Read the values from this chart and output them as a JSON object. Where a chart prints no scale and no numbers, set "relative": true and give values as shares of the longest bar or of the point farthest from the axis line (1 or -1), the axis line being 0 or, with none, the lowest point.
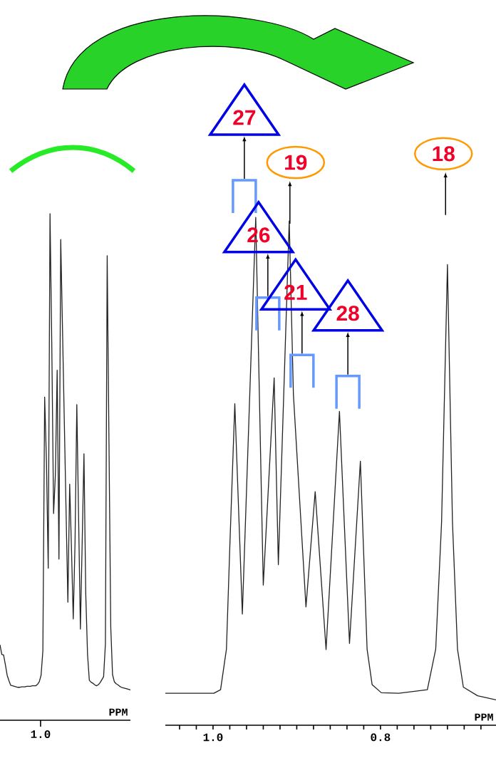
{
  "chart_data": [
    {
      "type": "line",
      "relative": true,
      "xlabel": "PPM",
      "color": "#222222",
      "categories": [
        null,
        null,
        null,
        null,
        null,
        null,
        null,
        null,
        null,
        null,
        null,
        null,
        null,
        null,
        null,
        null,
        null,
        null,
        null,
        null,
        null,
        null,
        null,
        null,
        null,
        null,
        null,
        null,
        null,
        null,
        null,
        null,
        null,
        null,
        null,
        null,
        null,
        null,
        null,
        null,
        null,
        null,
        null,
        null,
        null,
        null,
        null,
        null,
        null,
        null,
        null,
        null,
        null,
        null,
        null,
        null,
        null,
        null,
        null,
        null,
        null,
        null,
        null,
        null,
        null,
        null,
        null,
        null,
        null,
        null,
        null,
        null,
        null,
        null
      ],
      "values": [
        0.149,
        0.13,
        0.129,
        0.11,
        0.089,
        0.078,
        0.069,
        0.068,
        0.067,
        0.066,
        0.065,
        0.065,
        0.066,
        0.066,
        0.066,
        0.067,
        0.067,
        0.067,
        0.068,
        0.068,
        0.068,
        0.071,
        0.076,
        0.089,
        0.137,
        0.638,
        0.512,
        0.3,
        1.0,
        0.737,
        0.408,
        0.484,
        0.691,
        0.318,
        0.949,
        0.77,
        0.59,
        0.41,
        0.233,
        0.466,
        0.34,
        0.2,
        0.35,
        0.623,
        0.4,
        0.18,
        0.35,
        0.526,
        0.25,
        0.13,
        0.079,
        0.075,
        0.073,
        0.07,
        0.068,
        0.07,
        0.074,
        0.08,
        0.086,
        0.15,
        0.917,
        0.55,
        0.184,
        0.09,
        0.076,
        0.072,
        0.07,
        0.067,
        0.065,
        0.064,
        0.063,
        0.062,
        0.061,
        0.06
      ],
      "annotations": [
        "1.0"
      ]
    },
    {
      "type": "line",
      "relative": true,
      "xlabel": "PPM",
      "color": "#222222",
      "x": [
        1.057,
        0.999,
        0.991,
        0.984,
        0.98,
        0.974,
        0.965,
        0.949,
        0.94,
        0.927,
        0.922,
        0.909,
        0.904,
        0.889,
        0.878,
        0.865,
        0.849,
        0.837,
        0.824,
        0.816,
        0.81,
        0.799,
        0.778,
        0.744,
        0.734,
        0.727,
        0.72,
        0.714,
        0.708,
        0.701,
        0.684,
        0.662
      ],
      "values": [
        0.063,
        0.063,
        0.07,
        0.15,
        0.35,
        0.633,
        0.219,
        1.0,
        0.276,
        0.684,
        0.316,
        0.993,
        0.651,
        0.233,
        0.46,
        0.149,
        0.618,
        0.161,
        0.52,
        0.15,
        0.08,
        0.064,
        0.063,
        0.07,
        0.15,
        0.4,
        0.907,
        0.4,
        0.15,
        0.075,
        0.058,
        0.05
      ],
      "xlim": [
        1.057,
        0.662
      ],
      "xticks": [
        {
          "value": 1.04,
          "label": null
        },
        {
          "value": 1.02,
          "label": null
        },
        {
          "value": 1.0,
          "label": "1.0"
        },
        {
          "value": 0.98,
          "label": null
        },
        {
          "value": 0.96,
          "label": null
        },
        {
          "value": 0.94,
          "label": null
        },
        {
          "value": 0.92,
          "label": null
        },
        {
          "value": 0.9,
          "label": null
        },
        {
          "value": 0.88,
          "label": null
        },
        {
          "value": 0.86,
          "label": null
        },
        {
          "value": 0.84,
          "label": null
        },
        {
          "value": 0.82,
          "label": null
        },
        {
          "value": 0.8,
          "label": "0.8"
        },
        {
          "value": 0.78,
          "label": null
        },
        {
          "value": 0.76,
          "label": null
        },
        {
          "value": 0.74,
          "label": null
        },
        {
          "value": 0.72,
          "label": null
        },
        {
          "value": 0.7,
          "label": null
        },
        {
          "value": 0.68,
          "label": null
        }
      ],
      "annotations": [
        "27",
        "19",
        "26",
        "21",
        "28",
        "18"
      ]
    }
  ]
}
